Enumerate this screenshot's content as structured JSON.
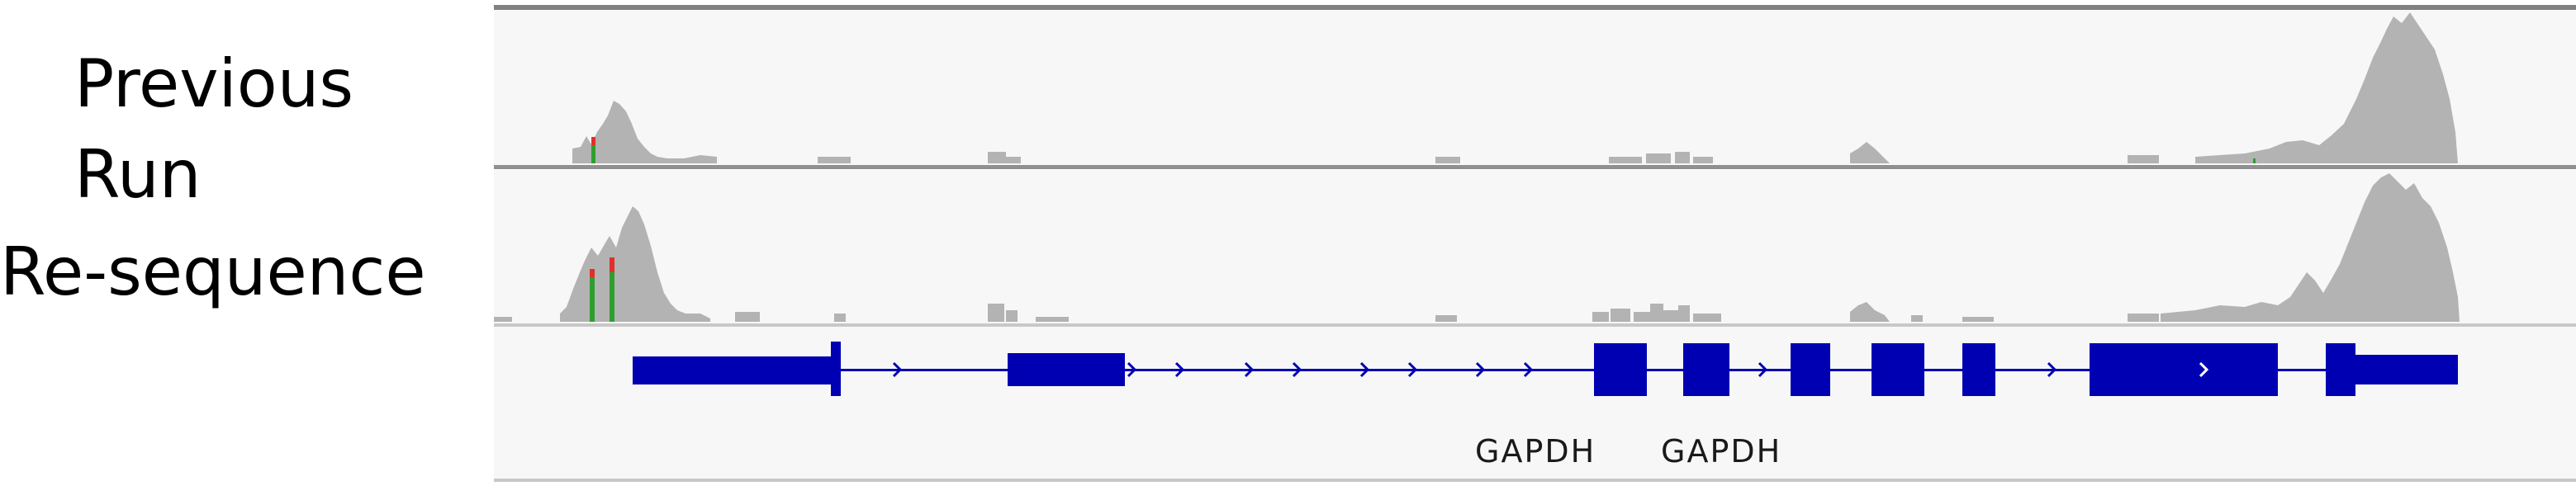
{
  "track_labels": {
    "previous_run": "Previous  Run",
    "previous": "Previous",
    "run": "Run",
    "resequence": "Re-sequence"
  },
  "gene_labels": [
    "GAPDH",
    "GAPDH"
  ],
  "colors": {
    "coverage_fill": "#b3b3b3",
    "track_background": "#f7f7f7",
    "track_divider": "#909090",
    "gene_feature": "#0000b3",
    "mismatch_red": "#e0302a",
    "mismatch_green": "#2e9e2e",
    "gene_label_text": "#1a1a1a"
  },
  "strand": "+",
  "icons": [
    "strand-arrow-icon"
  ]
}
